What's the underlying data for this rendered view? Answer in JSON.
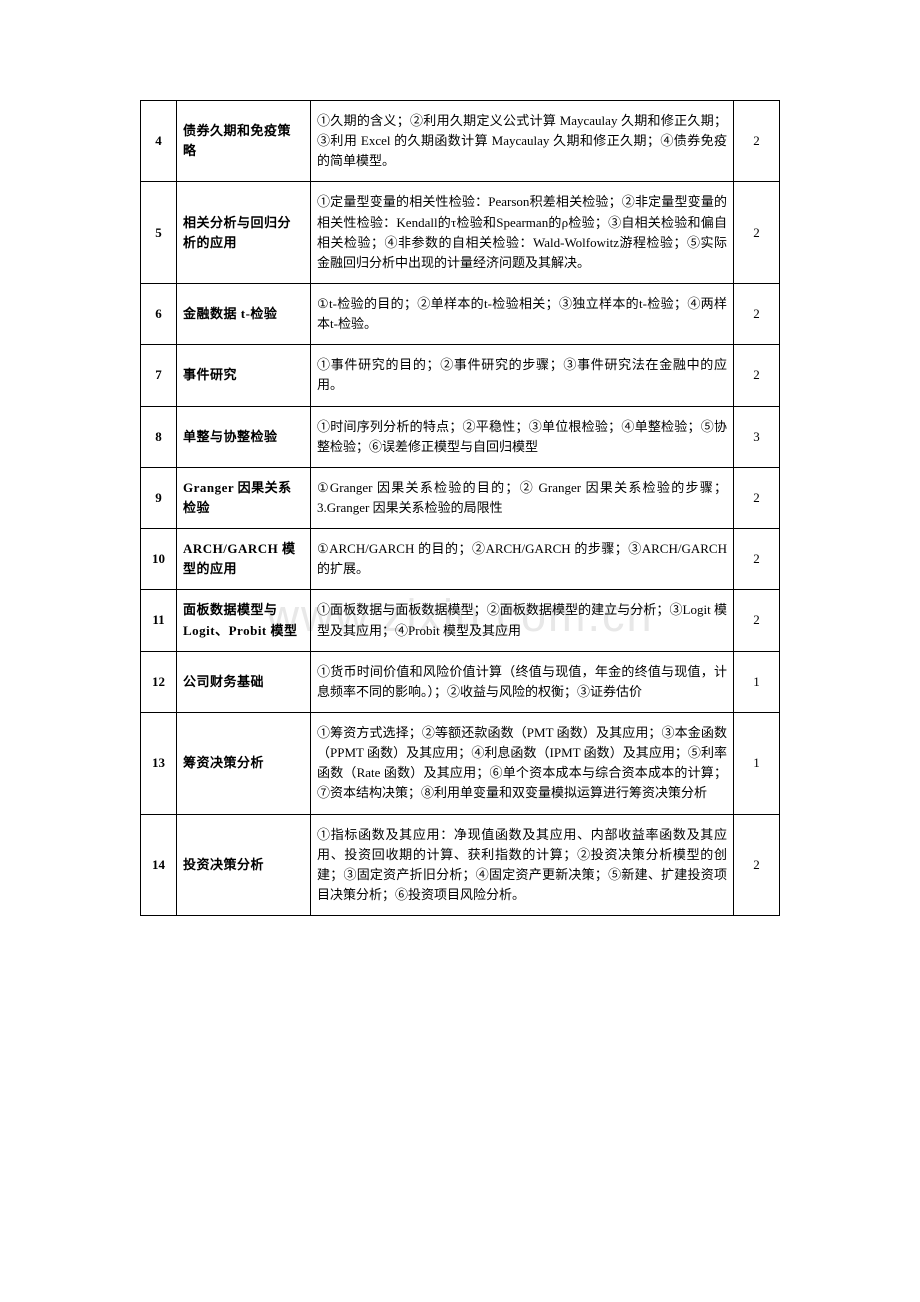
{
  "watermark": "www.zixin.com.cn",
  "table": {
    "columns": {
      "widths": [
        "36px",
        "134px",
        "auto",
        "46px"
      ],
      "alignment": [
        "center",
        "left",
        "justify",
        "center"
      ]
    },
    "border_color": "#000000",
    "background_color": "#ffffff",
    "font_size": 13,
    "rows": [
      {
        "num": "4",
        "title": "债券久期和免疫策略",
        "content": "①久期的含义；②利用久期定义公式计算 Maycaulay 久期和修正久期；③利用 Excel 的久期函数计算 Maycaulay 久期和修正久期；④债券免疫的简单模型。",
        "hours": "2"
      },
      {
        "num": "5",
        "title": "相关分析与回归分析的应用",
        "content": "①定量型变量的相关性检验：Pearson积差相关检验；②非定量型变量的相关性检验：Kendall的τ检验和Spearman的ρ检验；③自相关检验和偏自相关检验；④非参数的自相关检验：Wald-Wolfowitz游程检验；⑤实际金融回归分析中出现的计量经济问题及其解决。",
        "hours": "2"
      },
      {
        "num": "6",
        "title": "金融数据 t-检验",
        "content": "①t-检验的目的；②单样本的t-检验相关；③独立样本的t-检验；④两样本t-检验。",
        "hours": "2"
      },
      {
        "num": "7",
        "title": "事件研究",
        "content": "①事件研究的目的；②事件研究的步骤；③事件研究法在金融中的应用。",
        "hours": "2"
      },
      {
        "num": "8",
        "title": "单整与协整检验",
        "content": "①时间序列分析的特点；②平稳性；③单位根检验；④单整检验；⑤协整检验；⑥误差修正模型与自回归模型",
        "hours": "3"
      },
      {
        "num": "9",
        "title": "Granger 因果关系检验",
        "content": "①Granger 因果关系检验的目的；② Granger 因果关系检验的步骤；3.Granger 因果关系检验的局限性",
        "hours": "2"
      },
      {
        "num": "10",
        "title": "ARCH/GARCH 模型的应用",
        "content": "①ARCH/GARCH 的目的；②ARCH/GARCH 的步骤；③ARCH/GARCH 的扩展。",
        "hours": "2"
      },
      {
        "num": "11",
        "title": "面板数据模型与 Logit、Probit 模型",
        "content": "①面板数据与面板数据模型；②面板数据模型的建立与分析；③Logit 模型及其应用；④Probit 模型及其应用",
        "hours": "2"
      },
      {
        "num": "12",
        "title": "公司财务基础",
        "content": "①货币时间价值和风险价值计算（终值与现值，年金的终值与现值，计息频率不同的影响。）；②收益与风险的权衡；③证券估价",
        "hours": "1"
      },
      {
        "num": "13",
        "title": "筹资决策分析",
        "content": "①筹资方式选择；②等额还款函数（PMT 函数）及其应用；③本金函数（PPMT 函数）及其应用；④利息函数（IPMT 函数）及其应用；⑤利率函数（Rate 函数）及其应用；⑥单个资本成本与综合资本成本的计算；⑦资本结构决策；⑧利用单变量和双变量模拟运算进行筹资决策分析",
        "hours": "1"
      },
      {
        "num": "14",
        "title": "投资决策分析",
        "content": "①指标函数及其应用：净现值函数及其应用、内部收益率函数及其应用、投资回收期的计算、获利指数的计算；②投资决策分析模型的创建；③固定资产折旧分析；④固定资产更新决策；⑤新建、扩建投资项目决策分析；⑥投资项目风险分析。",
        "hours": "2"
      }
    ]
  }
}
